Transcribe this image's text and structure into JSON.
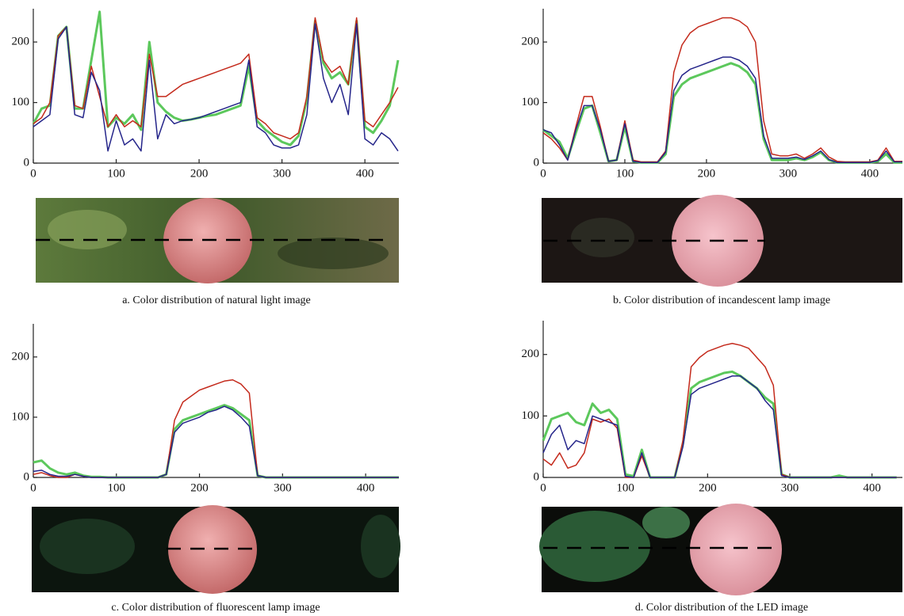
{
  "chart_data": [
    {
      "type": "line",
      "caption": "a. Color distribution of natural light image",
      "x": [
        0,
        10,
        20,
        30,
        40,
        50,
        60,
        70,
        80,
        90,
        100,
        110,
        120,
        130,
        140,
        150,
        160,
        170,
        180,
        190,
        200,
        210,
        220,
        230,
        240,
        250,
        260,
        270,
        280,
        290,
        300,
        310,
        320,
        330,
        340,
        350,
        360,
        370,
        380,
        390,
        400,
        410,
        420,
        430,
        440
      ],
      "series": [
        {
          "color": "#5cc85c",
          "values": [
            65,
            90,
            95,
            210,
            225,
            90,
            90,
            170,
            250,
            60,
            75,
            65,
            80,
            55,
            200,
            100,
            85,
            75,
            70,
            72,
            75,
            78,
            80,
            85,
            90,
            95,
            160,
            70,
            55,
            45,
            35,
            30,
            45,
            105,
            235,
            165,
            140,
            150,
            130,
            235,
            60,
            50,
            70,
            95,
            170
          ]
        },
        {
          "color": "#c42a1c",
          "values": [
            65,
            75,
            100,
            210,
            225,
            95,
            90,
            160,
            110,
            60,
            80,
            60,
            70,
            60,
            180,
            110,
            110,
            120,
            130,
            135,
            140,
            145,
            150,
            155,
            160,
            165,
            180,
            75,
            65,
            50,
            45,
            40,
            50,
            110,
            240,
            170,
            150,
            160,
            130,
            240,
            70,
            60,
            80,
            100,
            125
          ]
        },
        {
          "color": "#25258a",
          "values": [
            60,
            70,
            80,
            205,
            225,
            80,
            75,
            150,
            120,
            20,
            70,
            30,
            40,
            20,
            170,
            40,
            80,
            65,
            70,
            72,
            75,
            80,
            85,
            90,
            95,
            100,
            170,
            60,
            50,
            30,
            25,
            25,
            30,
            80,
            230,
            140,
            100,
            130,
            80,
            230,
            40,
            30,
            50,
            40,
            20
          ]
        }
      ],
      "xlim": [
        0,
        441
      ],
      "ylim": [
        0,
        255
      ],
      "xticks": [
        0,
        100,
        200,
        300,
        400
      ],
      "yticks": [
        0,
        100,
        200
      ]
    },
    {
      "type": "line",
      "caption": "b. Color distribution of incandescent lamp image",
      "x": [
        0,
        10,
        20,
        30,
        40,
        50,
        60,
        70,
        80,
        90,
        100,
        110,
        120,
        130,
        140,
        150,
        160,
        170,
        180,
        190,
        200,
        210,
        220,
        230,
        240,
        250,
        260,
        270,
        280,
        290,
        300,
        310,
        320,
        330,
        340,
        350,
        360,
        370,
        380,
        390,
        400,
        410,
        420,
        430,
        440
      ],
      "series": [
        {
          "color": "#5cc85c",
          "values": [
            55,
            45,
            35,
            8,
            50,
            90,
            95,
            50,
            3,
            5,
            60,
            3,
            1,
            1,
            1,
            15,
            110,
            130,
            140,
            145,
            150,
            155,
            160,
            165,
            160,
            150,
            130,
            40,
            5,
            5,
            5,
            8,
            5,
            10,
            18,
            5,
            1,
            1,
            1,
            1,
            1,
            3,
            15,
            1,
            1
          ]
        },
        {
          "color": "#c42a1c",
          "values": [
            50,
            40,
            25,
            5,
            60,
            110,
            110,
            60,
            3,
            5,
            70,
            5,
            2,
            2,
            2,
            20,
            150,
            195,
            215,
            225,
            230,
            235,
            240,
            240,
            235,
            225,
            200,
            70,
            15,
            12,
            12,
            15,
            8,
            15,
            25,
            10,
            3,
            2,
            2,
            2,
            2,
            5,
            25,
            3,
            3
          ]
        },
        {
          "color": "#25258a",
          "values": [
            55,
            50,
            30,
            5,
            55,
            95,
            95,
            55,
            3,
            5,
            65,
            3,
            1,
            1,
            1,
            18,
            120,
            145,
            155,
            160,
            165,
            170,
            175,
            175,
            170,
            160,
            140,
            45,
            8,
            8,
            8,
            10,
            6,
            12,
            20,
            6,
            1,
            1,
            1,
            1,
            1,
            4,
            20,
            2,
            2
          ]
        }
      ],
      "xlim": [
        0,
        440
      ],
      "ylim": [
        0,
        255
      ],
      "xticks": [
        0,
        100,
        200,
        300,
        400
      ],
      "yticks": [
        0,
        100,
        200
      ]
    },
    {
      "type": "line",
      "caption": "c. Color distribution of fluorescent lamp image",
      "x": [
        0,
        10,
        20,
        30,
        40,
        50,
        60,
        70,
        80,
        90,
        100,
        110,
        120,
        130,
        140,
        150,
        160,
        170,
        180,
        190,
        200,
        210,
        220,
        230,
        240,
        250,
        260,
        270,
        280,
        290,
        300,
        310,
        320,
        330,
        340,
        350,
        360,
        370,
        380,
        390,
        400,
        410,
        420,
        430,
        440
      ],
      "series": [
        {
          "color": "#5cc85c",
          "values": [
            25,
            28,
            15,
            8,
            5,
            8,
            3,
            1,
            1,
            0,
            0,
            0,
            0,
            0,
            0,
            0,
            5,
            80,
            95,
            100,
            105,
            110,
            115,
            120,
            115,
            105,
            95,
            3,
            0,
            0,
            0,
            0,
            0,
            0,
            0,
            0,
            0,
            0,
            0,
            0,
            0,
            0,
            0,
            0,
            0
          ]
        },
        {
          "color": "#c42a1c",
          "values": [
            5,
            8,
            3,
            0,
            0,
            5,
            2,
            0,
            0,
            0,
            0,
            0,
            0,
            0,
            0,
            0,
            5,
            95,
            125,
            135,
            145,
            150,
            155,
            160,
            162,
            155,
            140,
            3,
            0,
            0,
            0,
            0,
            0,
            0,
            0,
            0,
            0,
            0,
            0,
            0,
            0,
            0,
            0,
            0,
            0
          ]
        },
        {
          "color": "#25258a",
          "values": [
            10,
            12,
            5,
            2,
            2,
            5,
            2,
            0,
            0,
            0,
            0,
            0,
            0,
            0,
            0,
            0,
            5,
            75,
            90,
            95,
            100,
            108,
            112,
            118,
            112,
            100,
            85,
            3,
            0,
            0,
            0,
            0,
            0,
            0,
            0,
            0,
            0,
            0,
            0,
            0,
            0,
            0,
            0,
            0,
            0
          ]
        }
      ],
      "xlim": [
        0,
        440
      ],
      "ylim": [
        0,
        255
      ],
      "xticks": [
        0,
        100,
        200,
        300,
        400
      ],
      "yticks": [
        0,
        100,
        200
      ]
    },
    {
      "type": "line",
      "caption": "d. Color distribution of the LED image",
      "x": [
        0,
        10,
        20,
        30,
        40,
        50,
        60,
        70,
        80,
        90,
        100,
        110,
        120,
        130,
        140,
        150,
        160,
        170,
        180,
        190,
        200,
        210,
        220,
        230,
        240,
        250,
        260,
        270,
        280,
        290,
        300,
        310,
        320,
        330,
        340,
        350,
        360,
        370,
        380,
        390,
        400,
        410,
        420,
        430
      ],
      "series": [
        {
          "color": "#5cc85c",
          "values": [
            60,
            95,
            100,
            105,
            90,
            85,
            120,
            105,
            110,
            95,
            5,
            2,
            45,
            0,
            0,
            0,
            0,
            55,
            145,
            155,
            160,
            165,
            170,
            172,
            165,
            155,
            145,
            130,
            120,
            5,
            0,
            0,
            0,
            0,
            0,
            0,
            3,
            0,
            0,
            0,
            0,
            0,
            0,
            0
          ]
        },
        {
          "color": "#c42a1c",
          "values": [
            30,
            20,
            40,
            15,
            20,
            40,
            95,
            90,
            95,
            80,
            0,
            0,
            35,
            0,
            0,
            0,
            0,
            60,
            180,
            195,
            205,
            210,
            215,
            218,
            215,
            210,
            195,
            180,
            150,
            5,
            0,
            0,
            0,
            0,
            0,
            0,
            0,
            0,
            0,
            0,
            0,
            0,
            0,
            0
          ]
        },
        {
          "color": "#25258a",
          "values": [
            40,
            70,
            85,
            45,
            60,
            55,
            100,
            95,
            90,
            85,
            2,
            0,
            40,
            0,
            0,
            0,
            0,
            50,
            135,
            145,
            150,
            155,
            160,
            165,
            165,
            155,
            145,
            125,
            110,
            3,
            0,
            0,
            0,
            0,
            0,
            0,
            0,
            0,
            0,
            0,
            0,
            0,
            0,
            0
          ]
        }
      ],
      "xlim": [
        0,
        437
      ],
      "ylim": [
        0,
        255
      ],
      "xticks": [
        0,
        100,
        200,
        300,
        400
      ],
      "yticks": [
        0,
        100,
        200
      ]
    }
  ]
}
